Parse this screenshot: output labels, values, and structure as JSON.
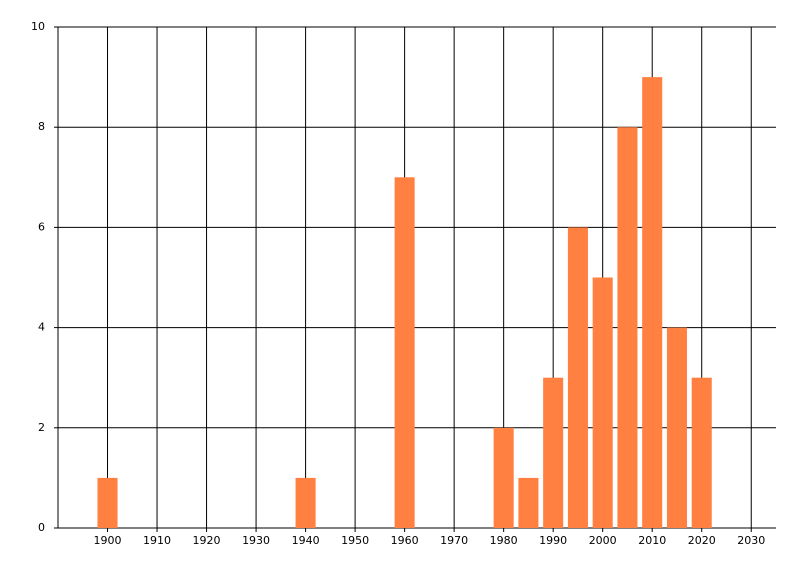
{
  "chart_data": {
    "type": "bar",
    "x": [
      1900,
      1940,
      1960,
      1980,
      1985,
      1990,
      1995,
      2000,
      2005,
      2010,
      2015,
      2020
    ],
    "values": [
      1,
      1,
      7,
      2,
      1,
      3,
      6,
      5,
      8,
      9,
      4,
      3
    ],
    "color": "#ff8040",
    "xlim": [
      1890,
      2035
    ],
    "xticks": [
      1900,
      1910,
      1920,
      1930,
      1940,
      1950,
      1960,
      1970,
      1980,
      1990,
      2000,
      2010,
      2020,
      2030
    ],
    "ylim": [
      0,
      10
    ],
    "yticks": [
      0,
      2,
      4,
      6,
      8,
      10
    ],
    "grid": true
  }
}
